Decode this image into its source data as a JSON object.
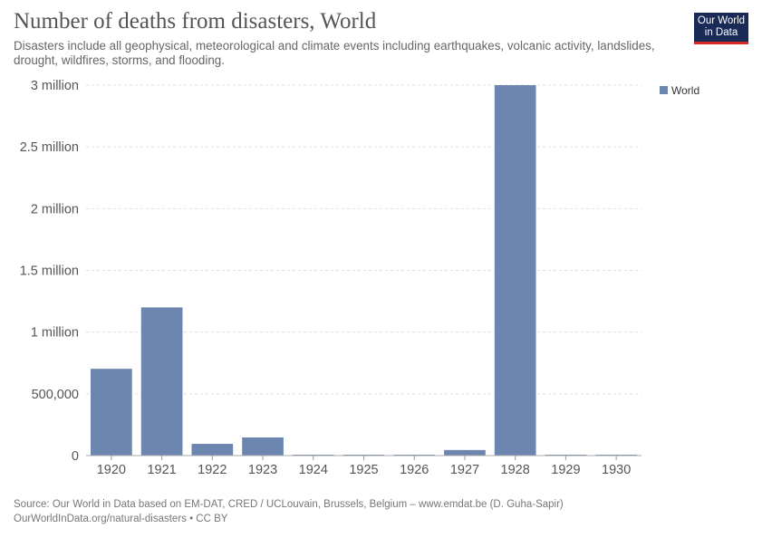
{
  "header": {
    "title": "Number of deaths from disasters, World",
    "subtitle": "Disasters include all geophysical, meteorological and climate events including earthquakes, volcanic activity, landslides, drought, wildfires, storms, and flooding.",
    "logo_line1": "Our World",
    "logo_line2": "in Data"
  },
  "footer": {
    "source": "Source: Our World in Data based on EM-DAT, CRED / UCLouvain, Brussels, Belgium – www.emdat.be (D. Guha-Sapir)",
    "url": "OurWorldInData.org/natural-disasters • CC BY"
  },
  "chart_data": {
    "type": "bar",
    "title": "Number of deaths from disasters, World",
    "xlabel": "",
    "ylabel": "",
    "categories": [
      "1920",
      "1921",
      "1922",
      "1923",
      "1924",
      "1925",
      "1926",
      "1927",
      "1928",
      "1929",
      "1930"
    ],
    "series": [
      {
        "name": "World",
        "color": "#6d86b0",
        "values": [
          703000,
          1200000,
          95000,
          147000,
          1000,
          3000,
          1000,
          45000,
          3000000,
          1000,
          5000
        ]
      }
    ],
    "ylim": [
      0,
      3000000
    ],
    "yticks": [
      0,
      500000,
      1000000,
      1500000,
      2000000,
      2500000,
      3000000
    ],
    "ytick_labels": [
      "0",
      "500,000",
      "1 million",
      "1.5 million",
      "2 million",
      "2.5 million",
      "3 million"
    ],
    "grid": true,
    "legend": {
      "position": "top-right",
      "entries": [
        "World"
      ]
    }
  }
}
